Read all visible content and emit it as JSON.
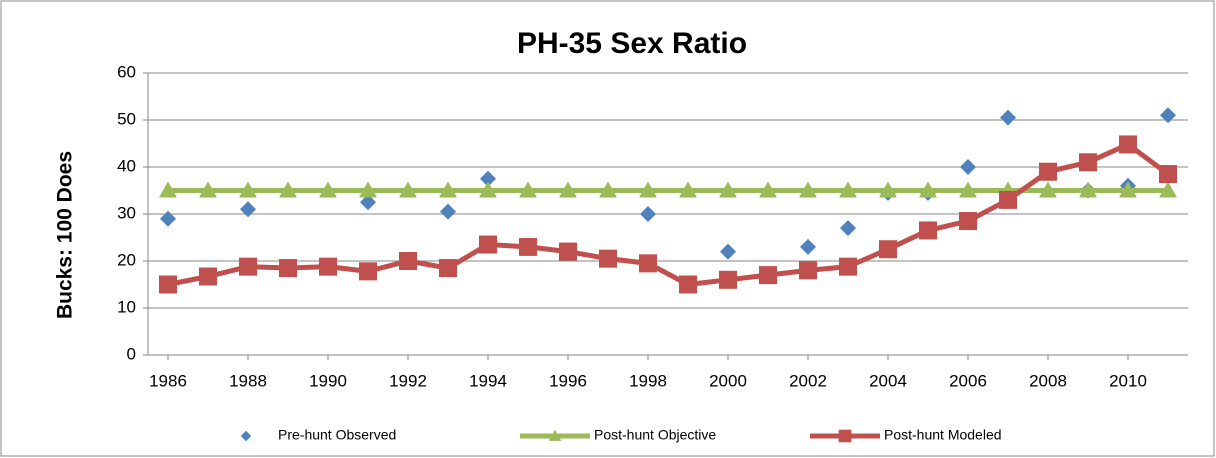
{
  "chart_data": {
    "type": "line",
    "title": "PH-35 Sex Ratio",
    "y_label": "Bucks: 100 Does",
    "x": [
      1986,
      1987,
      1988,
      1989,
      1990,
      1991,
      1992,
      1993,
      1994,
      1995,
      1996,
      1997,
      1998,
      1999,
      2000,
      2001,
      2002,
      2003,
      2004,
      2005,
      2006,
      2007,
      2008,
      2009,
      2010,
      2011
    ],
    "xlim": [
      1985.5,
      2011.5
    ],
    "xticks": [
      1986,
      1988,
      1990,
      1992,
      1994,
      1996,
      1998,
      2000,
      2002,
      2004,
      2006,
      2008,
      2010
    ],
    "ylim": [
      0,
      60
    ],
    "yticks": [
      0,
      10,
      20,
      30,
      40,
      50,
      60
    ],
    "grid": true,
    "legend": "bottom",
    "series": [
      {
        "name": "Pre-hunt Observed",
        "color": "#4f81bd",
        "marker": "diamond",
        "line": false,
        "values": [
          29,
          null,
          31,
          null,
          null,
          32.5,
          null,
          30.5,
          37.5,
          null,
          null,
          null,
          30,
          null,
          22,
          null,
          23,
          27,
          34.5,
          34.5,
          40,
          50.5,
          39,
          35,
          36,
          51
        ]
      },
      {
        "name": "Post-hunt Objective",
        "color": "#9bbb59",
        "marker": "triangle",
        "line": true,
        "values": [
          35,
          35,
          35,
          35,
          35,
          35,
          35,
          35,
          35,
          35,
          35,
          35,
          35,
          35,
          35,
          35,
          35,
          35,
          35,
          35,
          35,
          35,
          35,
          35,
          35,
          35
        ]
      },
      {
        "name": "Post-hunt Modeled",
        "color": "#c0504d",
        "marker": "square",
        "line": true,
        "values": [
          15,
          16.7,
          18.8,
          18.5,
          18.8,
          17.8,
          20,
          18.5,
          23.5,
          23,
          22,
          20.5,
          19.5,
          15,
          16,
          17,
          18,
          18.8,
          22.5,
          26.5,
          28.5,
          33,
          39,
          41,
          44.8,
          38.5
        ]
      }
    ]
  }
}
